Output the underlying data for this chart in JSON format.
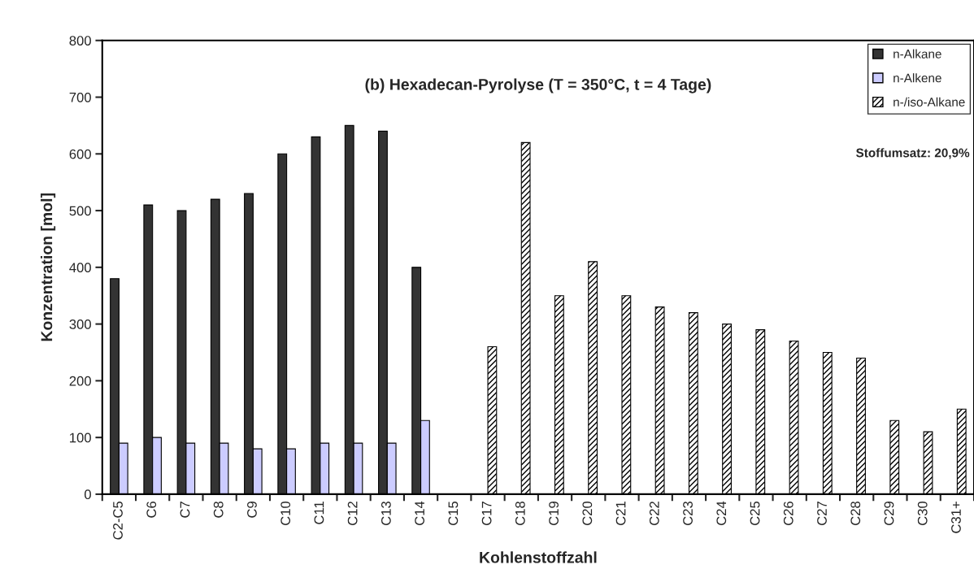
{
  "chart_data": {
    "type": "bar",
    "title": "(b) Hexadecan-Pyrolyse (T = 350°C, t = 4 Tage)",
    "xlabel": "Kohlenstoffzahl",
    "ylabel": "Konzentration [mol]",
    "categories": [
      "C2-C5",
      "C6",
      "C7",
      "C8",
      "C9",
      "C10",
      "C11",
      "C12",
      "C13",
      "C14",
      "C15",
      "C17",
      "C18",
      "C19",
      "C20",
      "C21",
      "C22",
      "C23",
      "C24",
      "C25",
      "C26",
      "C27",
      "C28",
      "C29",
      "C30",
      "C31+"
    ],
    "series": [
      {
        "name": "n-Alkane",
        "color": "#333333",
        "values": [
          380,
          510,
          500,
          520,
          530,
          600,
          630,
          650,
          640,
          400,
          null,
          null,
          null,
          null,
          null,
          null,
          null,
          null,
          null,
          null,
          null,
          null,
          null,
          null,
          null,
          null
        ]
      },
      {
        "name": "n-Alkene",
        "color": "#ccccff",
        "values": [
          90,
          100,
          90,
          90,
          80,
          80,
          90,
          90,
          90,
          130,
          null,
          null,
          null,
          null,
          null,
          null,
          null,
          null,
          null,
          null,
          null,
          null,
          null,
          null,
          null,
          null
        ]
      },
      {
        "name": "n-/iso-Alkane",
        "color": "#000000",
        "values": [
          null,
          null,
          null,
          null,
          null,
          null,
          null,
          null,
          null,
          null,
          null,
          260,
          620,
          350,
          410,
          350,
          330,
          320,
          300,
          290,
          270,
          250,
          240,
          130,
          110,
          150
        ]
      }
    ],
    "ylim": [
      0,
      800
    ],
    "yticks": [
      0,
      100,
      200,
      300,
      400,
      500,
      600,
      700,
      800
    ],
    "grid": false,
    "legend": "top right",
    "annotations": [
      "Stoffumsatz: 20,9%"
    ]
  }
}
